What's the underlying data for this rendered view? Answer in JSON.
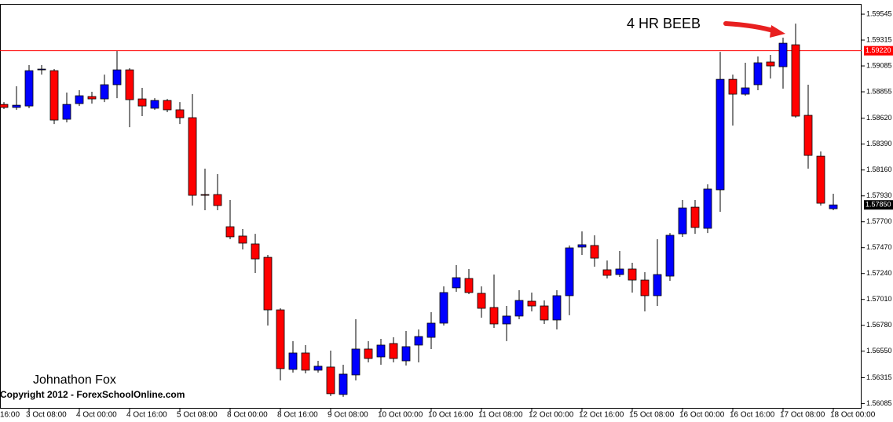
{
  "chart_data": {
    "type": "candlestick",
    "annotation": "4 HR BEEB",
    "author": "Johnathon Fox",
    "copyright": "Copyright 2012 - ForexSchoolOnline.com",
    "x_partial_label": "16:00",
    "categories": [
      null,
      null,
      "3 Oct 08:00",
      null,
      null,
      null,
      "4 Oct 00:00",
      null,
      null,
      null,
      "4 Oct 16:00",
      null,
      null,
      null,
      "5 Oct 08:00",
      null,
      null,
      null,
      "8 Oct 00:00",
      null,
      null,
      null,
      "8 Oct 16:00",
      null,
      null,
      null,
      "9 Oct 08:00",
      null,
      null,
      null,
      "10 Oct 00:00",
      null,
      null,
      null,
      "10 Oct 16:00",
      null,
      null,
      null,
      "11 Oct 08:00",
      null,
      null,
      null,
      "12 Oct 00:00",
      null,
      null,
      null,
      "12 Oct 16:00",
      null,
      null,
      null,
      "15 Oct 08:00",
      null,
      null,
      null,
      "16 Oct 00:00",
      null,
      null,
      null,
      "16 Oct 16:00",
      null,
      null,
      null,
      "17 Oct 08:00",
      null,
      null,
      null,
      "18 Oct 00:00"
    ],
    "open": [
      1.58743,
      1.58716,
      1.58729,
      1.5905,
      1.59043,
      1.58611,
      1.5875,
      1.58813,
      1.58792,
      1.58918,
      1.5905,
      1.58792,
      1.58709,
      1.58778,
      1.58695,
      1.58625,
      1.57942,
      1.57942,
      1.57656,
      1.57573,
      1.57503,
      1.57384,
      1.56917,
      1.56388,
      1.56534,
      1.56381,
      1.56409,
      1.56165,
      1.56339,
      1.56569,
      1.56499,
      1.56618,
      1.56464,
      1.56604,
      1.56673,
      1.56799,
      1.57113,
      1.57196,
      1.57064,
      1.56938,
      1.56792,
      1.56862,
      1.56994,
      1.56952,
      1.56827,
      1.57043,
      1.57475,
      1.57489,
      1.57273,
      1.57231,
      1.5728,
      1.57182,
      1.57043,
      1.57217,
      1.57593,
      1.5783,
      1.57642,
      1.57984,
      1.58966,
      1.58834,
      1.58918,
      1.5912,
      1.59078,
      1.59273,
      1.58646,
      1.58283,
      1.57816
    ],
    "high": [
      1.58764,
      1.58904,
      1.59092,
      1.59092,
      1.59057,
      1.58848,
      1.58869,
      1.58855,
      1.59008,
      1.59217,
      1.59064,
      1.5889,
      1.58799,
      1.58792,
      1.58764,
      1.58834,
      1.58172,
      1.58123,
      1.57893,
      1.57635,
      1.57593,
      1.57405,
      1.56931,
      1.56639,
      1.56604,
      1.56464,
      1.56555,
      1.56429,
      1.56834,
      1.56639,
      1.56659,
      1.56673,
      1.56729,
      1.56743,
      1.56896,
      1.57126,
      1.57315,
      1.5728,
      1.57126,
      1.57231,
      1.56952,
      1.57092,
      1.57071,
      1.57001,
      1.57092,
      1.57489,
      1.57614,
      1.5758,
      1.57356,
      1.5744,
      1.57336,
      1.57252,
      1.57545,
      1.576,
      1.57893,
      1.57893,
      1.58033,
      1.5921,
      1.59008,
      1.59113,
      1.59169,
      1.59183,
      1.59336,
      1.59461,
      1.58918,
      1.58325,
      1.57949
    ],
    "low": [
      1.58702,
      1.58695,
      1.58709,
      1.59008,
      1.58569,
      1.58583,
      1.58729,
      1.5875,
      1.58764,
      1.58799,
      1.58541,
      1.58639,
      1.58695,
      1.58674,
      1.58569,
      1.57844,
      1.57803,
      1.57803,
      1.57545,
      1.57454,
      1.57245,
      1.56778,
      1.5629,
      1.5636,
      1.56353,
      1.5636,
      1.56151,
      1.56144,
      1.5629,
      1.5645,
      1.56429,
      1.5645,
      1.56422,
      1.5645,
      1.56569,
      1.56778,
      1.57078,
      1.57057,
      1.56848,
      1.56757,
      1.56639,
      1.56834,
      1.56903,
      1.56792,
      1.56743,
      1.56869,
      1.57405,
      1.57301,
      1.57196,
      1.5721,
      1.57071,
      1.56903,
      1.56952,
      1.57175,
      1.57566,
      1.57593,
      1.576,
      1.57789,
      1.58555,
      1.5882,
      1.58869,
      1.58973,
      1.58883,
      1.58625,
      1.58172,
      1.57844,
      1.57803
    ],
    "close": [
      1.58716,
      1.58736,
      1.59043,
      1.59057,
      1.58604,
      1.58743,
      1.5882,
      1.58792,
      1.58918,
      1.5905,
      1.58785,
      1.58729,
      1.58778,
      1.58695,
      1.58625,
      1.57935,
      1.57935,
      1.57844,
      1.57566,
      1.5751,
      1.5737,
      1.56917,
      1.56395,
      1.56534,
      1.56381,
      1.56416,
      1.56172,
      1.56346,
      1.56569,
      1.56485,
      1.56604,
      1.56485,
      1.5659,
      1.5668,
      1.56799,
      1.57071,
      1.57203,
      1.57071,
      1.56931,
      1.56792,
      1.56862,
      1.57001,
      1.56952,
      1.56827,
      1.57043,
      1.57468,
      1.57496,
      1.57377,
      1.57224,
      1.5728,
      1.57182,
      1.57043,
      1.57231,
      1.5758,
      1.57823,
      1.57649,
      1.57991,
      1.58966,
      1.58834,
      1.5889,
      1.59113,
      1.59085,
      1.59287,
      1.58639,
      1.5829,
      1.57865,
      1.5785
    ],
    "up_color": "#0000ff",
    "down_color": "#ff0000",
    "ylim": [
      1.56039,
      1.59636
    ],
    "yticks": [
      1.59545,
      1.59315,
      1.59085,
      1.58855,
      {
        "value": 1.5862,
        "label": "1.58620"
      },
      {
        "value": 1.5839,
        "label": "1.58390"
      },
      {
        "value": 1.5816,
        "label": "1.58160"
      },
      {
        "value": 1.5793,
        "label": "1.57930"
      },
      {
        "value": 1.577,
        "label": "1.57700"
      },
      {
        "value": 1.5747,
        "label": "1.57470"
      },
      {
        "value": 1.5724,
        "label": "1.57240"
      },
      {
        "value": 1.5701,
        "label": "1.57010"
      },
      {
        "value": 1.5678,
        "label": "1.56780"
      },
      {
        "value": 1.5655,
        "label": "1.56550"
      },
      1.56315,
      1.56085
    ],
    "hline": {
      "value": 1.5922,
      "label": "1.59220",
      "color": "#ff0000"
    },
    "last_price": {
      "value": 1.5785,
      "label": "1.57850"
    }
  }
}
